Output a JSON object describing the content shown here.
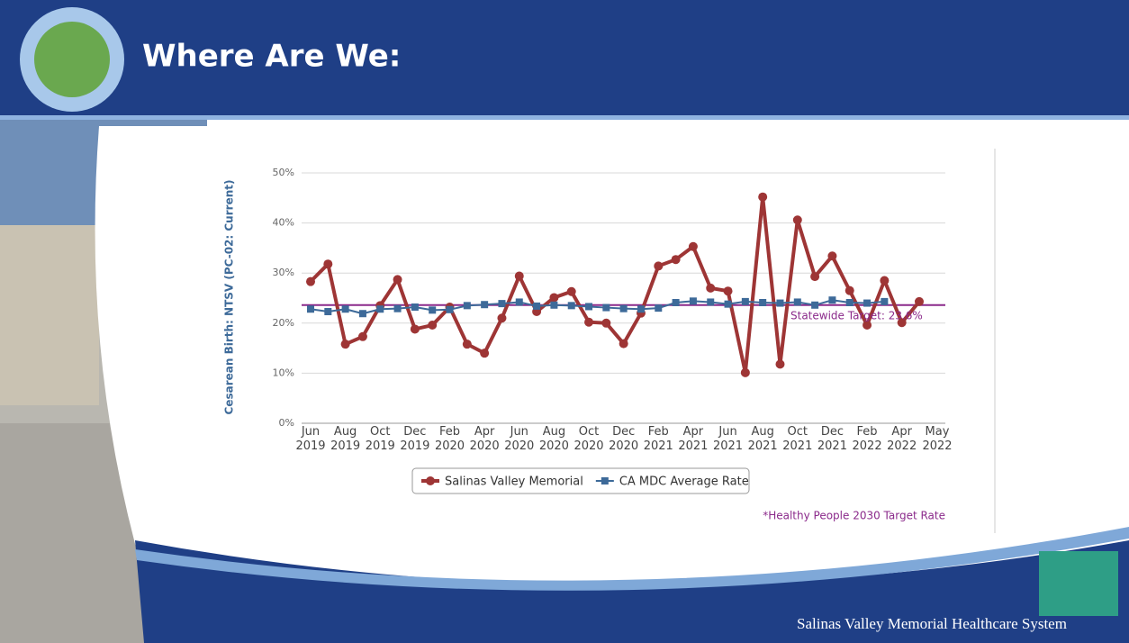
{
  "slide": {
    "title": "Where Are We:",
    "footer": "Salinas Valley Memorial Healthcare System"
  },
  "chart_data": {
    "type": "line",
    "y_label": "Cesarean Birth: NTSV (PC-02: Current)",
    "categories": [
      "Jun 2019",
      null,
      "Aug 2019",
      null,
      "Oct 2019",
      null,
      "Dec 2019",
      null,
      "Feb 2020",
      null,
      "Apr 2020",
      null,
      "Jun 2020",
      null,
      "Aug 2020",
      null,
      "Oct 2020",
      null,
      "Dec 2020",
      null,
      "Feb 2021",
      null,
      "Apr 2021",
      null,
      "Jun 2021",
      null,
      "Aug 2021",
      null,
      "Oct 2021",
      null,
      "Dec 2021",
      null,
      "Feb 2022",
      null,
      "Apr 2022",
      "May 2022"
    ],
    "series": [
      {
        "name": "Salinas Valley Memorial",
        "color": "#9e3535",
        "marker": "circle",
        "values": [
          28.3,
          31.8,
          15.8,
          17.3,
          23.5,
          28.7,
          18.8,
          19.6,
          23.2,
          15.8,
          14.0,
          21.0,
          29.4,
          22.3,
          25.1,
          26.3,
          20.2,
          20.0,
          15.9,
          22.0,
          31.4,
          32.7,
          35.3,
          27.0,
          26.4,
          10.1,
          45.2,
          11.8,
          40.6,
          29.3,
          33.4,
          26.5,
          19.6,
          28.5,
          20.1,
          24.3
        ]
      },
      {
        "name": "CA MDC Average Rate",
        "color": "#3d6a99",
        "marker": "square",
        "values": [
          22.8,
          22.3,
          22.8,
          21.9,
          22.8,
          22.9,
          23.2,
          22.6,
          22.7,
          23.5,
          23.7,
          23.9,
          24.2,
          23.4,
          23.6,
          23.5,
          23.3,
          23.1,
          22.9,
          22.8,
          23.0,
          24.1,
          24.4,
          24.2,
          23.8,
          24.3,
          24.1,
          24.0,
          24.2,
          23.6,
          24.6,
          24.1,
          24.0,
          24.3,
          null,
          null
        ]
      }
    ],
    "target": {
      "value": 23.6,
      "label": "Statewide Target: 23.6%",
      "color": "#8b2a8b"
    },
    "footnote": "*Healthy People 2030 Target Rate",
    "ylim": [
      0,
      50
    ],
    "yticks": [
      {
        "value": 0,
        "label": "0%"
      },
      {
        "value": 10,
        "label": "10%"
      },
      {
        "value": 20,
        "label": "20%"
      },
      {
        "value": 30,
        "label": "30%"
      },
      {
        "value": 40,
        "label": "40%"
      },
      {
        "value": 50,
        "label": "50%"
      }
    ],
    "grid": true
  }
}
